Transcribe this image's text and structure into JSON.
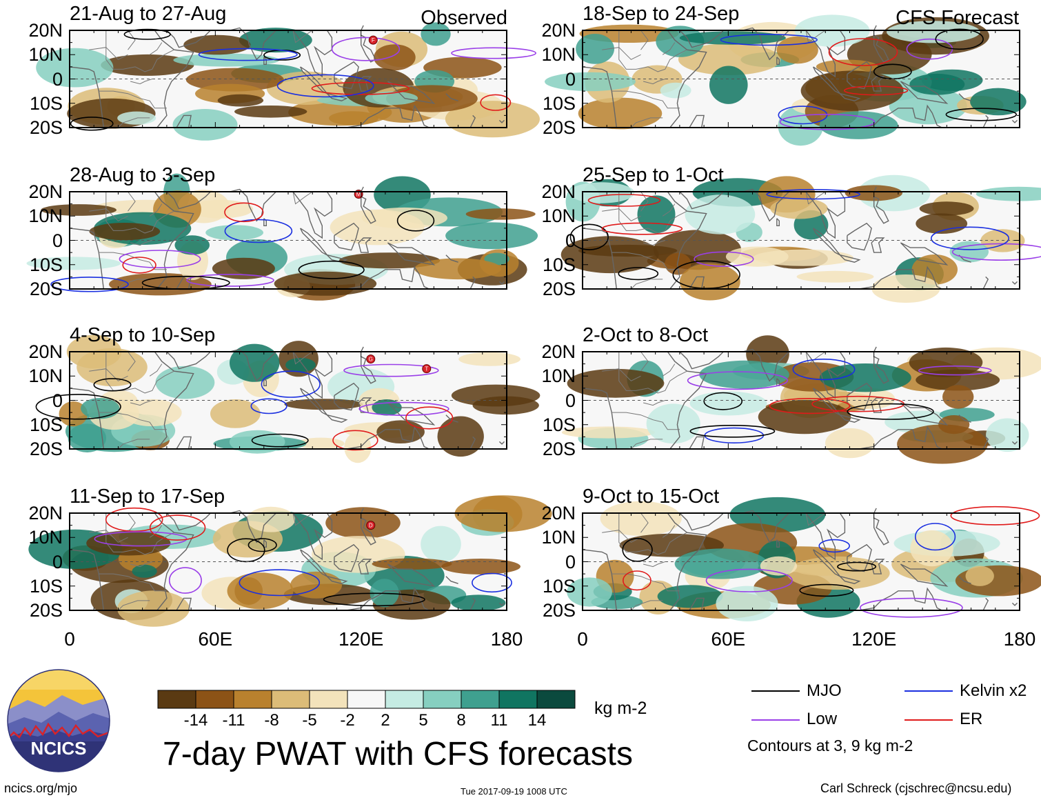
{
  "chart_data": {
    "type": "heatmap",
    "title": "7-day PWAT with CFS forecasts",
    "units": "kg m-2",
    "observed_label": "Observed",
    "forecast_label": "CFS Forecast",
    "x_ticks": [
      "0",
      "60E",
      "120E",
      "180"
    ],
    "y_ticks": [
      "20N",
      "10N",
      "0",
      "10S",
      "20S"
    ],
    "xlim": [
      0,
      180
    ],
    "ylim": [
      -20,
      20
    ],
    "panels_left": [
      "21-Aug to 27-Aug",
      "28-Aug to 3-Sep",
      "4-Sep to 10-Sep",
      "11-Sep to 17-Sep"
    ],
    "panels_right": [
      "18-Sep to 24-Sep",
      "25-Sep to 1-Oct",
      "2-Oct to 8-Oct",
      "9-Oct to 15-Oct"
    ],
    "colorbar": {
      "levels": [
        "-14",
        "-11",
        "-8",
        "-5",
        "-2",
        "2",
        "5",
        "8",
        "11",
        "14"
      ],
      "colors": [
        "#5a3a12",
        "#8c5316",
        "#b9812e",
        "#dcbc78",
        "#f3e3bb",
        "#f7f7f7",
        "#c5ebe3",
        "#86cfc0",
        "#3fa08f",
        "#107561",
        "#0b4a3e"
      ]
    },
    "contour_legend": [
      {
        "label": "MJO",
        "color": "#000000"
      },
      {
        "label": "Kelvin x2",
        "color": "#1a2fe0"
      },
      {
        "label": "Low",
        "color": "#9a3fe8"
      },
      {
        "label": "ER",
        "color": "#e01a1a"
      }
    ],
    "contour_note": "Contours at 3, 9 kg m-2",
    "storm_markers": [
      {
        "panel": 0,
        "letter": "F",
        "lon": 125,
        "lat": 16
      },
      {
        "panel": 1,
        "letter": "M",
        "lon": 119,
        "lat": 19
      },
      {
        "panel": 2,
        "letter": "G",
        "lon": 124,
        "lat": 17
      },
      {
        "panel": 2,
        "letter": "T",
        "lon": 147,
        "lat": 13
      },
      {
        "panel": 3,
        "letter": "D",
        "lon": 124,
        "lat": 15
      }
    ]
  },
  "logo": {
    "text": "NCICS"
  },
  "footer": {
    "left": "ncics.org/mjo",
    "center": "Tue 2017-09-19 1008 UTC",
    "right": "Carl Schreck (cjschrec@ncsu.edu)"
  }
}
